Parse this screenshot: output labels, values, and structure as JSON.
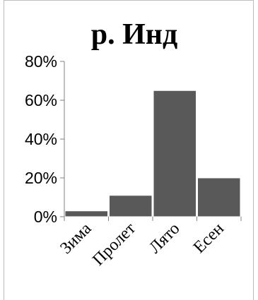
{
  "chart_data": {
    "type": "bar",
    "title": "р. Инд",
    "categories": [
      "Зима",
      "Пролет",
      "Лято",
      "Есен"
    ],
    "values": [
      3,
      11,
      65,
      20
    ],
    "value_unit": "%",
    "xlabel": "",
    "ylabel": "",
    "ylim": [
      0,
      80
    ],
    "yticks": [
      "0%",
      "20%",
      "40%",
      "60%",
      "80%"
    ],
    "ytick_values": [
      0,
      20,
      40,
      60,
      80
    ],
    "grid": false,
    "legend": "none",
    "bar_color": "#595959",
    "bar_edge_color": "#ffffff"
  }
}
